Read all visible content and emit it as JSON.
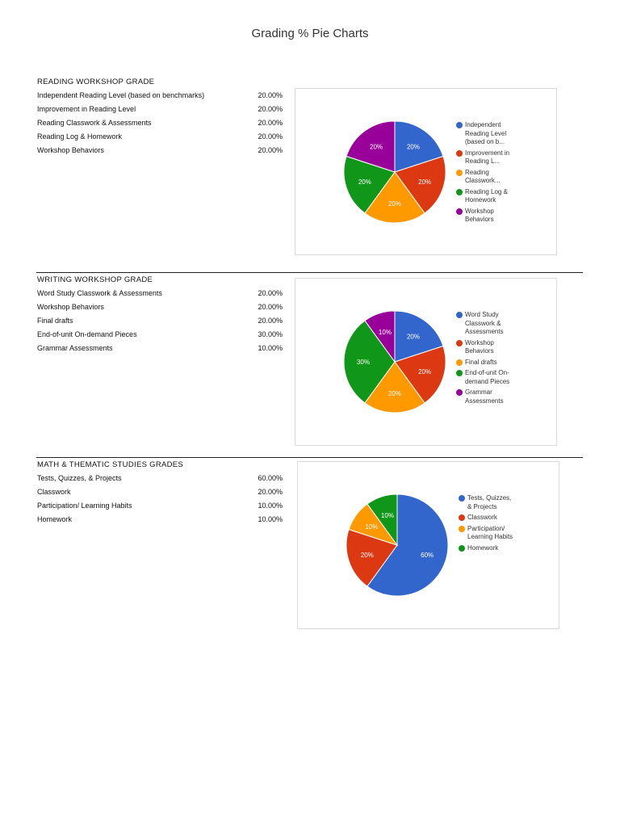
{
  "page": {
    "title": "Grading % Pie Charts"
  },
  "sections": [
    {
      "heading": "READING WORKSHOP GRADE",
      "rows": [
        {
          "label": "Independent Reading Level (based on benchmarks)",
          "value": "20.00%"
        },
        {
          "label": "Improvement in Reading Level",
          "value": "20.00%"
        },
        {
          "label": "Reading Classwork & Assessments",
          "value": "20.00%"
        },
        {
          "label": "Reading Log & Homework",
          "value": "20.00%"
        },
        {
          "label": "Workshop Behaviors",
          "value": "20.00%"
        }
      ],
      "legend": [
        "Independent Reading Level (based on b...",
        "Improvement in Reading L...",
        "Reading Classwork...",
        "Reading Log & Homework",
        "Workshop Behaviors"
      ]
    },
    {
      "heading": "WRITING WORKSHOP GRADE",
      "rows": [
        {
          "label": "Word Study Classwork & Assessments",
          "value": "20.00%"
        },
        {
          "label": "Workshop Behaviors",
          "value": "20.00%"
        },
        {
          "label": "Final drafts",
          "value": "20.00%"
        },
        {
          "label": "End-of-unit On-demand Pieces",
          "value": "30.00%"
        },
        {
          "label": "Grammar Assessments",
          "value": "10.00%"
        }
      ],
      "legend": [
        "Word Study Classwork & Assessments",
        "Workshop Behaviors",
        "Final drafts",
        "End-of-unit On-demand Pieces",
        "Grammar Assessments"
      ]
    },
    {
      "heading": "MATH & THEMATIC STUDIES GRADES",
      "rows": [
        {
          "label": "Tests, Quizzes, & Projects",
          "value": "60.00%"
        },
        {
          "label": "Classwork",
          "value": "20.00%"
        },
        {
          "label": "Participation/ Learning Habits",
          "value": "10.00%"
        },
        {
          "label": "Homework",
          "value": "10.00%"
        }
      ],
      "legend": [
        "Tests, Quizzes, & Projects",
        "Classwork",
        "Participation/ Learning Habits",
        "Homework"
      ]
    }
  ],
  "colors": [
    "#3366cc",
    "#dc3912",
    "#ff9900",
    "#109618",
    "#990099"
  ],
  "chart_data": [
    {
      "type": "pie",
      "title": "READING WORKSHOP GRADE",
      "categories": [
        "Independent Reading Level (based on benchmarks)",
        "Improvement in Reading Level",
        "Reading Classwork & Assessments",
        "Reading Log & Homework",
        "Workshop Behaviors"
      ],
      "values": [
        20,
        20,
        20,
        20,
        20
      ],
      "slice_labels": [
        "20%",
        "20%",
        "20%",
        "20%",
        "20%"
      ],
      "colors": [
        "#3366cc",
        "#dc3912",
        "#ff9900",
        "#109618",
        "#990099"
      ],
      "legend_position": "right"
    },
    {
      "type": "pie",
      "title": "WRITING WORKSHOP GRADE",
      "categories": [
        "Word Study Classwork & Assessments",
        "Workshop Behaviors",
        "Final drafts",
        "End-of-unit On-demand Pieces",
        "Grammar Assessments"
      ],
      "values": [
        20,
        20,
        20,
        30,
        10
      ],
      "slice_labels": [
        "20%",
        "20%",
        "20%",
        "30%",
        "10%"
      ],
      "colors": [
        "#3366cc",
        "#dc3912",
        "#ff9900",
        "#109618",
        "#990099"
      ],
      "legend_position": "right"
    },
    {
      "type": "pie",
      "title": "MATH & THEMATIC STUDIES GRADES",
      "categories": [
        "Tests, Quizzes, & Projects",
        "Classwork",
        "Participation/ Learning Habits",
        "Homework"
      ],
      "values": [
        60,
        20,
        10,
        10
      ],
      "slice_labels": [
        "60%",
        "20%",
        "10%",
        "10%"
      ],
      "colors": [
        "#3366cc",
        "#dc3912",
        "#ff9900",
        "#109618"
      ],
      "legend_position": "right"
    }
  ]
}
